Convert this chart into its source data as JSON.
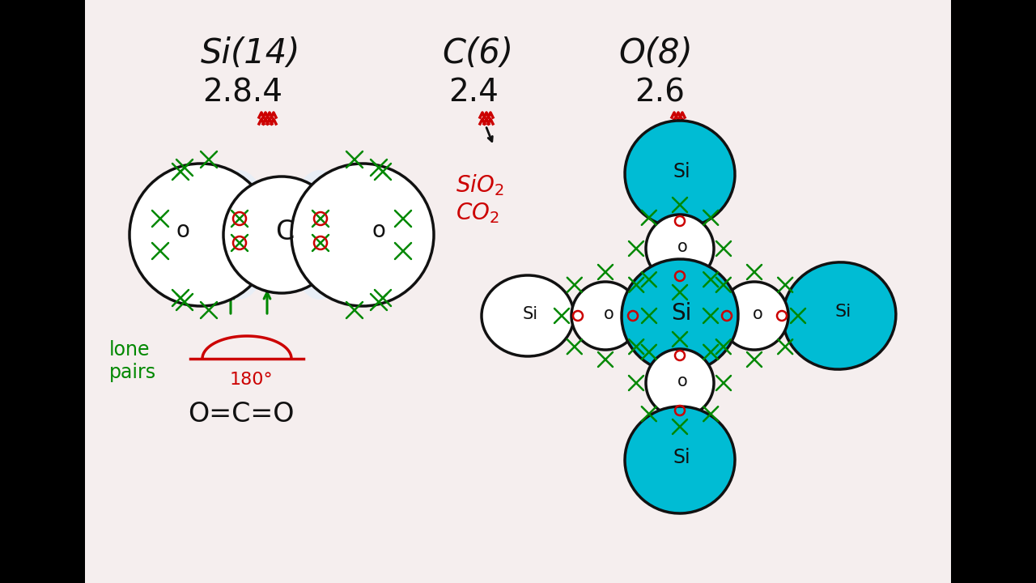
{
  "bg_color": "#f5eeee",
  "black_color": "#111111",
  "red_color": "#cc0000",
  "green_color": "#008800",
  "cyan_color": "#00bcd4",
  "yellow_color": "#ffff00",
  "title_si": "Si(14)",
  "title_c": "C(6)",
  "title_o": "O(8)",
  "config_si": "2.8.4",
  "config_c": "2.4",
  "config_o": "2.6",
  "label_sio2": "SiO2",
  "label_co2": "CO2",
  "lone_pairs": "lone\npairs",
  "angle_label": "180°",
  "formula": "O=C=O",
  "border_width": 105
}
